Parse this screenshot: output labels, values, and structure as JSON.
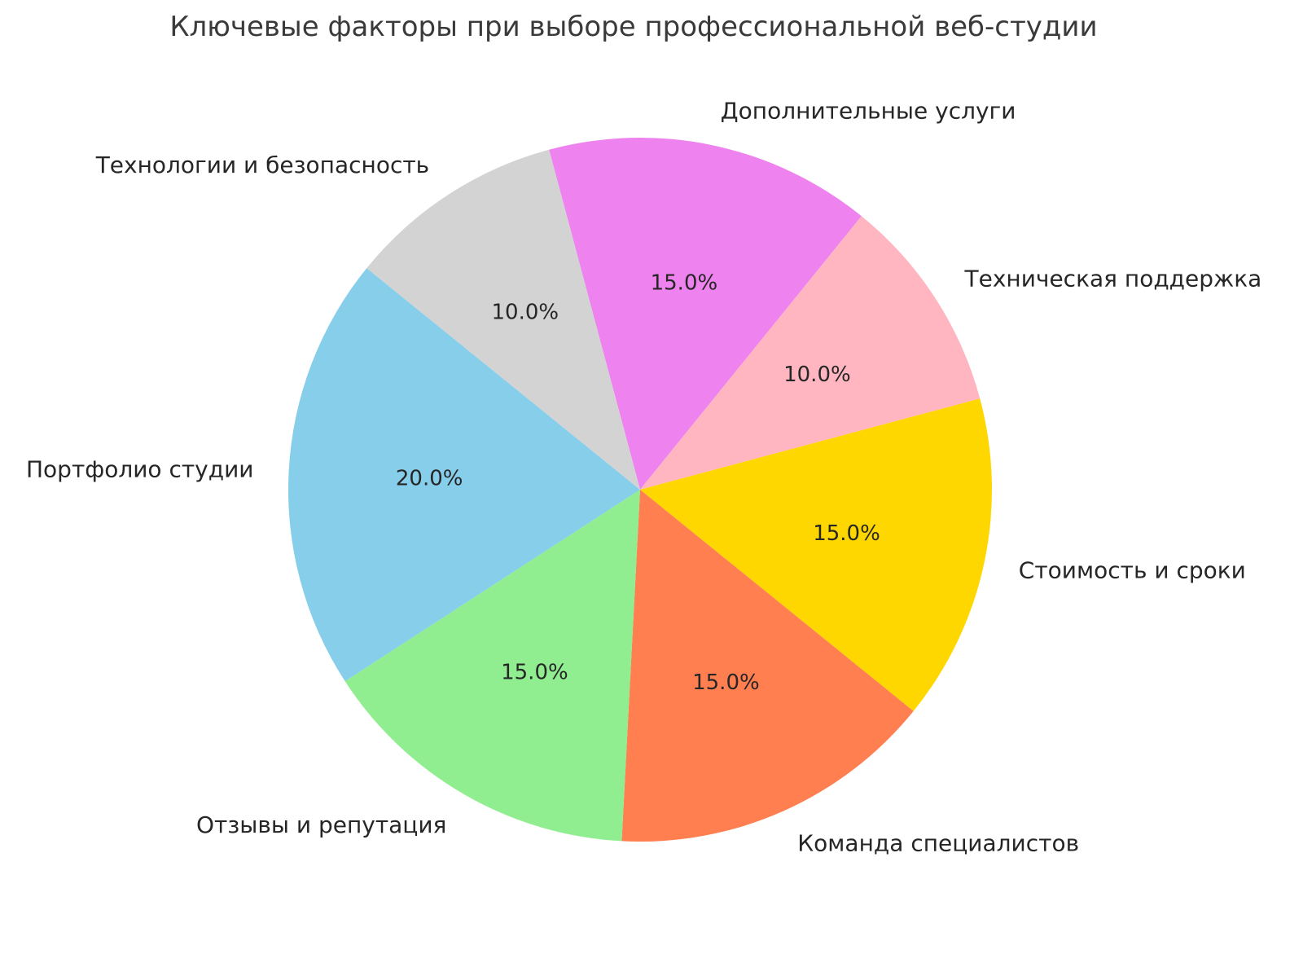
{
  "chart_data": {
    "type": "pie",
    "title": "Ключевые факторы при выборе профессиональной веб-студии",
    "legend_position": "none",
    "start_angle_deg": 105,
    "direction": "clockwise",
    "label_distance": 1.1,
    "pct_distance": 0.6,
    "text_color": "#262626",
    "background_color": "#ffffff",
    "slices": [
      {
        "label": "Дополнительные услуги",
        "value": 15.0,
        "pct_label": "15.0%",
        "color": "#EE82EE"
      },
      {
        "label": "Техническая поддержка",
        "value": 10.0,
        "pct_label": "10.0%",
        "color": "#FFB6C1"
      },
      {
        "label": "Стоимость и сроки",
        "value": 15.0,
        "pct_label": "15.0%",
        "color": "#FFD700"
      },
      {
        "label": "Команда специалистов",
        "value": 15.0,
        "pct_label": "15.0%",
        "color": "#FF7F50"
      },
      {
        "label": "Отзывы и репутация",
        "value": 15.0,
        "pct_label": "15.0%",
        "color": "#90EE90"
      },
      {
        "label": "Портфолио студии",
        "value": 20.0,
        "pct_label": "20.0%",
        "color": "#87CEEB"
      },
      {
        "label": "Технологии и безопасность",
        "value": 10.0,
        "pct_label": "10.0%",
        "color": "#D3D3D3"
      }
    ]
  }
}
